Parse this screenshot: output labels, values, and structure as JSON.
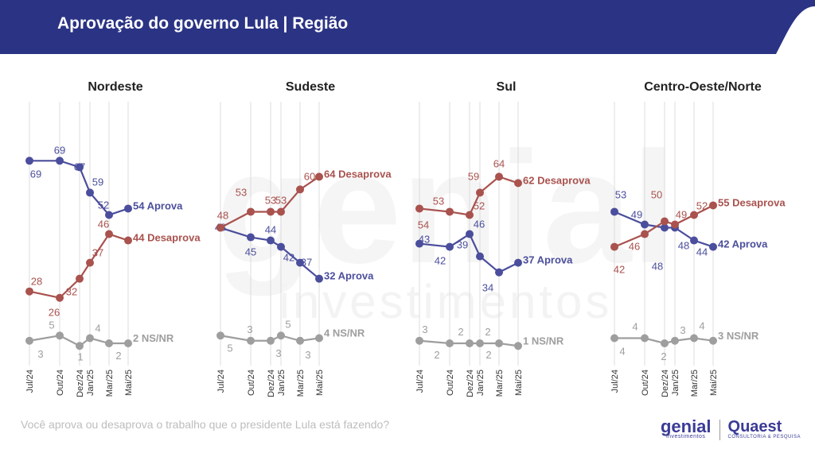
{
  "header": {
    "title": "Aprovação do governo Lula | Região"
  },
  "footer": {
    "question": "Você aprova ou desaprova o trabalho que o presidente Lula está fazendo?",
    "logo_genial": "genial",
    "logo_genial_sub": "investimentos",
    "logo_quaest": "Quaest",
    "logo_quaest_sub": "CONSULTORIA & PESQUISA"
  },
  "watermark": {
    "line1": "genial",
    "line2": "investimentos"
  },
  "colors": {
    "header_bg": "#2b3384",
    "aprova": "#4b4e9c",
    "desaprova": "#a9524e",
    "nsnr": "#9e9e9e",
    "gridline": "#dcdcdc"
  },
  "chart_data": [
    {
      "type": "line",
      "title": "Nordeste",
      "categories": [
        "Jul/24",
        "Out/24",
        "Dez/24",
        "Jan/25",
        "Mar/25",
        "Mai/25"
      ],
      "series": [
        {
          "name": "Aprova",
          "values": [
            69,
            69,
            67,
            59,
            52,
            54
          ],
          "end_label": "54 Aprova"
        },
        {
          "name": "Desaprova",
          "values": [
            28,
            26,
            32,
            37,
            46,
            44
          ],
          "end_label": "44 Desaprova"
        },
        {
          "name": "NS/NR",
          "values": [
            3,
            5,
            1,
            4,
            2,
            2
          ],
          "end_label": "2 NS/NR"
        }
      ]
    },
    {
      "type": "line",
      "title": "Sudeste",
      "categories": [
        "Jul/24",
        "Out/24",
        "Dez/24",
        "Jan/25",
        "Mar/25",
        "Mai/25"
      ],
      "series": [
        {
          "name": "Aprova",
          "values": [
            48,
            45,
            44,
            42,
            37,
            32
          ],
          "end_label": "32 Aprova"
        },
        {
          "name": "Desaprova",
          "values": [
            48,
            53,
            53,
            53,
            60,
            64
          ],
          "end_label": "64 Desaprova"
        },
        {
          "name": "NS/NR",
          "values": [
            5,
            3,
            3,
            5,
            3,
            4
          ],
          "end_label": "4 NS/NR"
        }
      ]
    },
    {
      "type": "line",
      "title": "Sul",
      "categories": [
        "Jul/24",
        "Out/24",
        "Dez/24",
        "Jan/25",
        "Mar/25",
        "Mai/25"
      ],
      "series": [
        {
          "name": "Aprova",
          "values": [
            43,
            42,
            46,
            39,
            34,
            37
          ],
          "end_label": "37 Aprova"
        },
        {
          "name": "Desaprova",
          "values": [
            54,
            53,
            52,
            59,
            64,
            62
          ],
          "end_label": "62 Desaprova"
        },
        {
          "name": "NS/NR",
          "values": [
            3,
            2,
            2,
            2,
            2,
            1
          ],
          "end_label": "1 NS/NR"
        }
      ]
    },
    {
      "type": "line",
      "title": "Centro-Oeste/Norte",
      "categories": [
        "Jul/24",
        "Out/24",
        "Dez/24",
        "Jan/25",
        "Mar/25",
        "Mai/25"
      ],
      "series": [
        {
          "name": "Aprova",
          "values": [
            53,
            49,
            48,
            48,
            44,
            42
          ],
          "end_label": "42 Aprova"
        },
        {
          "name": "Desaprova",
          "values": [
            42,
            46,
            50,
            49,
            52,
            55
          ],
          "end_label": "55 Desaprova"
        },
        {
          "name": "NS/NR",
          "values": [
            4,
            4,
            2,
            3,
            4,
            3
          ],
          "end_label": "3 NS/NR"
        }
      ]
    }
  ]
}
